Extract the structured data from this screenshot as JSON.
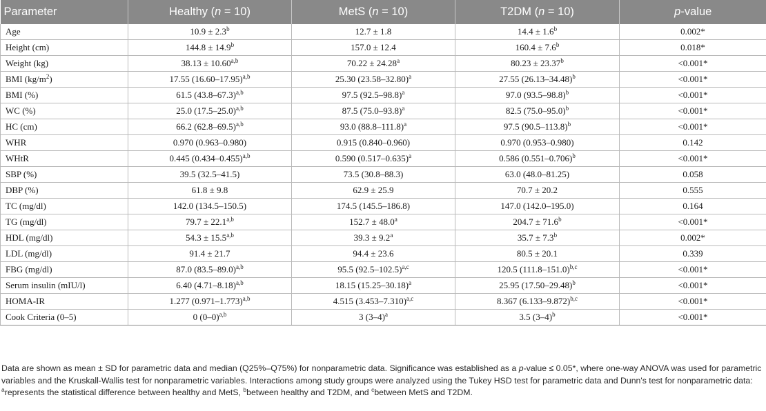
{
  "table": {
    "headers": [
      {
        "text": "Parameter"
      },
      {
        "text": "Healthy (",
        "italic": "n",
        "text_after": " = 10)"
      },
      {
        "text": "MetS (",
        "italic": "n",
        "text_after": " = 10)"
      },
      {
        "text": "T2DM (",
        "italic": "n",
        "text_after": " = 10)"
      },
      {
        "text": "",
        "italic": "p",
        "text_after": "-value"
      }
    ],
    "rows": [
      {
        "param": "Age",
        "param_sup": "",
        "param_after": "",
        "healthy": "10.9 ± 2.3",
        "healthy_sup": "b",
        "mets": "12.7 ± 1.8",
        "mets_sup": "",
        "t2dm": "14.4 ± 1.6",
        "t2dm_sup": "b",
        "p": "0.002*"
      },
      {
        "param": "Height (cm)",
        "param_sup": "",
        "param_after": "",
        "healthy": "144.8 ± 14.9",
        "healthy_sup": "b",
        "mets": "157.0 ± 12.4",
        "mets_sup": "",
        "t2dm": "160.4 ± 7.6",
        "t2dm_sup": "b",
        "p": "0.018*"
      },
      {
        "param": "Weight (kg)",
        "param_sup": "",
        "param_after": "",
        "healthy": "38.13 ± 10.60",
        "healthy_sup": "a,b",
        "mets": "70.22 ± 24.28",
        "mets_sup": "a",
        "t2dm": "80.23 ± 23.37",
        "t2dm_sup": "b",
        "p": "<0.001*"
      },
      {
        "param": "BMI (kg/m",
        "param_sup": "2",
        "param_after": ")",
        "healthy": "17.55 (16.60–17.95)",
        "healthy_sup": "a,b",
        "mets": "25.30 (23.58–32.80)",
        "mets_sup": "a",
        "t2dm": "27.55 (26.13–34.48)",
        "t2dm_sup": "b",
        "p": "<0.001*"
      },
      {
        "param": "BMI (%)",
        "param_sup": "",
        "param_after": "",
        "healthy": "61.5 (43.8–67.3)",
        "healthy_sup": "a,b",
        "mets": "97.5 (92.5–98.8)",
        "mets_sup": "a",
        "t2dm": "97.0 (93.5–98.8)",
        "t2dm_sup": "b",
        "p": "<0.001*"
      },
      {
        "param": "WC (%)",
        "param_sup": "",
        "param_after": "",
        "healthy": "25.0 (17.5–25.0)",
        "healthy_sup": "a,b",
        "mets": "87.5 (75.0–93.8)",
        "mets_sup": "a",
        "t2dm": "82.5 (75.0–95.0)",
        "t2dm_sup": "b",
        "p": "<0.001*"
      },
      {
        "param": "HC (cm)",
        "param_sup": "",
        "param_after": "",
        "healthy": "66.2 (62.8–69.5)",
        "healthy_sup": "a,b",
        "mets": "93.0 (88.8–111.8)",
        "mets_sup": "a",
        "t2dm": "97.5 (90.5–113.8)",
        "t2dm_sup": "b",
        "p": "<0.001*"
      },
      {
        "param": "WHR",
        "param_sup": "",
        "param_after": "",
        "healthy": "0.970 (0.963–0.980)",
        "healthy_sup": "",
        "mets": "0.915 (0.840–0.960)",
        "mets_sup": "",
        "t2dm": "0.970 (0.953–0.980)",
        "t2dm_sup": "",
        "p": "0.142"
      },
      {
        "param": "WHtR",
        "param_sup": "",
        "param_after": "",
        "healthy": "0.445 (0.434–0.455)",
        "healthy_sup": "a,b",
        "mets": "0.590 (0.517–0.635)",
        "mets_sup": "a",
        "t2dm": "0.586 (0.551–0.706)",
        "t2dm_sup": "b",
        "p": "<0.001*"
      },
      {
        "param": "SBP (%)",
        "param_sup": "",
        "param_after": "",
        "healthy": "39.5 (32.5–41.5)",
        "healthy_sup": "",
        "mets": "73.5 (30.8–88.3)",
        "mets_sup": "",
        "t2dm": "63.0 (48.0–81.25)",
        "t2dm_sup": "",
        "p": "0.058"
      },
      {
        "param": "DBP (%)",
        "param_sup": "",
        "param_after": "",
        "healthy": "61.8 ± 9.8",
        "healthy_sup": "",
        "mets": "62.9 ± 25.9",
        "mets_sup": "",
        "t2dm": "70.7 ± 20.2",
        "t2dm_sup": "",
        "p": "0.555"
      },
      {
        "param": "TC (mg/dl)",
        "param_sup": "",
        "param_after": "",
        "healthy": "142.0 (134.5–150.5)",
        "healthy_sup": "",
        "mets": "174.5 (145.5–186.8)",
        "mets_sup": "",
        "t2dm": "147.0 (142.0–195.0)",
        "t2dm_sup": "",
        "p": "0.164"
      },
      {
        "param": "TG (mg/dl)",
        "param_sup": "",
        "param_after": "",
        "healthy": "79.7 ± 22.1",
        "healthy_sup": "a,b",
        "mets": "152.7 ± 48.0",
        "mets_sup": "a",
        "t2dm": "204.7 ± 71.6",
        "t2dm_sup": "b",
        "p": "<0.001*"
      },
      {
        "param": "HDL (mg/dl)",
        "param_sup": "",
        "param_after": "",
        "healthy": "54.3 ± 15.5",
        "healthy_sup": "a,b",
        "mets": "39.3 ± 9.2",
        "mets_sup": "a",
        "t2dm": "35.7 ± 7.3",
        "t2dm_sup": "b",
        "p": "0.002*"
      },
      {
        "param": "LDL (mg/dl)",
        "param_sup": "",
        "param_after": "",
        "healthy": "91.4 ± 21.7",
        "healthy_sup": "",
        "mets": "94.4 ± 23.6",
        "mets_sup": "",
        "t2dm": "80.5 ± 20.1",
        "t2dm_sup": "",
        "p": "0.339"
      },
      {
        "param": "FBG (mg/dl)",
        "param_sup": "",
        "param_after": "",
        "healthy": "87.0 (83.5–89.0)",
        "healthy_sup": "a,b",
        "mets": "95.5 (92.5–102.5)",
        "mets_sup": "a,c",
        "t2dm": "120.5 (111.8–151.0)",
        "t2dm_sup": "b,c",
        "p": "<0.001*"
      },
      {
        "param": "Serum insulin (mIU/l)",
        "param_sup": "",
        "param_after": "",
        "healthy": "6.40 (4.71–8.18)",
        "healthy_sup": "a,b",
        "mets": "18.15 (15.25–30.18)",
        "mets_sup": "a",
        "t2dm": "25.95 (17.50–29.48)",
        "t2dm_sup": "b",
        "p": "<0.001*"
      },
      {
        "param": "HOMA-IR",
        "param_sup": "",
        "param_after": "",
        "healthy": "1.277 (0.971–1.773)",
        "healthy_sup": "a,b",
        "mets": "4.515 (3.453–7.310)",
        "mets_sup": "a,c",
        "t2dm": "8.367 (6.133–9.872)",
        "t2dm_sup": "b,c",
        "p": "<0.001*"
      },
      {
        "param": "Cook Criteria (0–5)",
        "param_sup": "",
        "param_after": "",
        "healthy": "0 (0–0)",
        "healthy_sup": "a,b",
        "mets": "3 (3–4)",
        "mets_sup": "a",
        "t2dm": "3.5 (3–4)",
        "t2dm_sup": "b",
        "p": "<0.001*"
      }
    ]
  },
  "footnote": {
    "p1": "Data are shown as mean ± SD for parametric data and median (Q25%–Q75%) for nonparametric data. Significance was established as a ",
    "p_italic": "p",
    "p2": "-value ≤ 0.05*, where one-way ANOVA was used for parametric variables and the Kruskall-Wallis test for nonparametric variables. Interactions among study groups were analyzed using the Tukey HSD test for parametric data and Dunn's test for nonparametric data: ",
    "sup_a": "a",
    "a_text": "represents the statistical difference between healthy and MetS, ",
    "sup_b": "b",
    "b_text": "between healthy and T2DM, and ",
    "sup_c": "c",
    "c_text": "between MetS and T2DM."
  }
}
